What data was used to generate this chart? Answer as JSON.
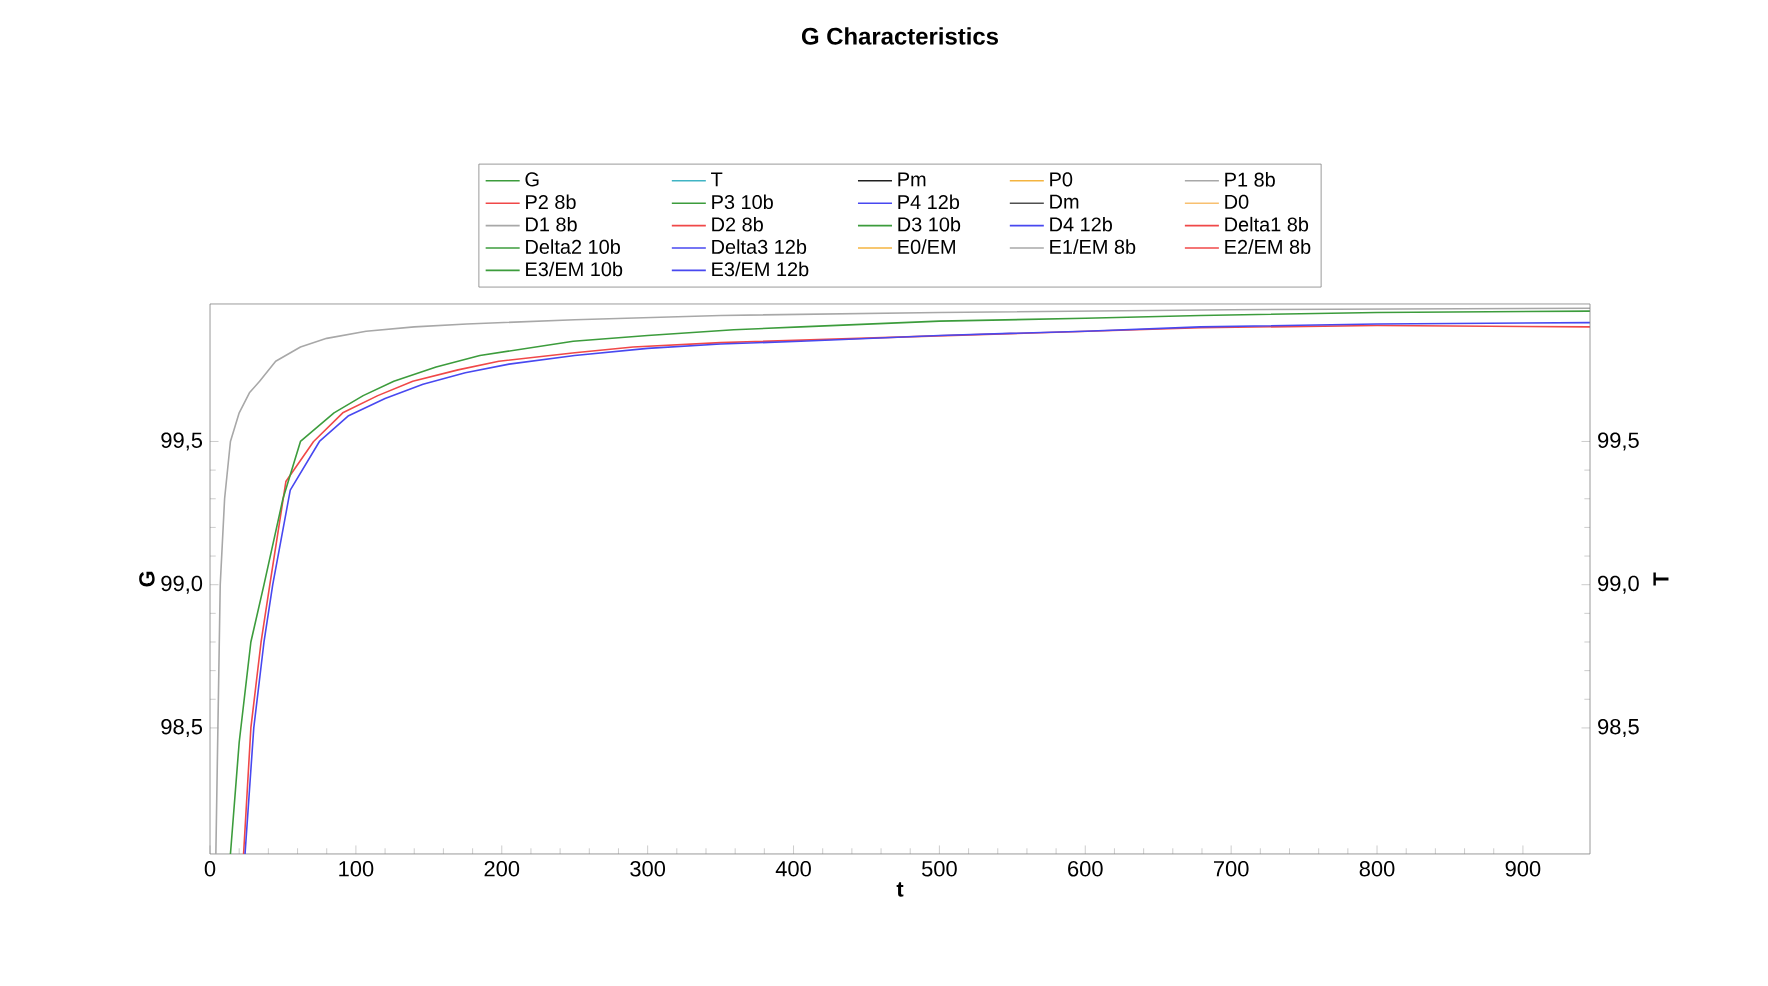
{
  "chart_data": {
    "type": "line",
    "title": "G Characteristics",
    "xlabel": "t",
    "ylabel": "G",
    "y2label": "T",
    "xlim": [
      0,
      946
    ],
    "xticks": [
      0,
      100,
      200,
      300,
      400,
      500,
      600,
      700,
      800,
      900
    ],
    "ylim": [
      98.06,
      99.98
    ],
    "yticks": [
      {
        "value": 98.5,
        "label": "98,5"
      },
      {
        "value": 99.0,
        "label": "99,0"
      },
      {
        "value": 99.5,
        "label": "99,5"
      }
    ],
    "y2lim": [
      98.06,
      99.98
    ],
    "y2ticks": [
      {
        "value": 98.5,
        "label": "98,5"
      },
      {
        "value": 99.0,
        "label": "99,0"
      },
      {
        "value": 99.5,
        "label": "99,5"
      }
    ],
    "grid": false,
    "legend": "top",
    "marker": "none",
    "line_style": "solid",
    "series": [
      {
        "name": "G",
        "color": "#3c9c3c"
      },
      {
        "name": "T",
        "color": "#40b4c4"
      },
      {
        "name": "Pm",
        "color": "#202020"
      },
      {
        "name": "P0",
        "color": "#f4b440"
      },
      {
        "name": "P1 8b",
        "color": "#a8a8a8"
      },
      {
        "name": "P2 8b",
        "color": "#f04848"
      },
      {
        "name": "P3 10b",
        "color": "#3c9c3c"
      },
      {
        "name": "P4 12b",
        "color": "#4848f0"
      },
      {
        "name": "Dm",
        "color": "#505050"
      },
      {
        "name": "D0",
        "color": "#f8c070"
      },
      {
        "name": "D1 8b",
        "color": "#a8a8a8"
      },
      {
        "name": "D2 8b",
        "color": "#f04848"
      },
      {
        "name": "D3 10b",
        "color": "#3c9c3c"
      },
      {
        "name": "D4 12b",
        "color": "#4848f0"
      },
      {
        "name": "Delta1 8b",
        "color": "#f04848"
      },
      {
        "name": "Delta2 10b",
        "color": "#3c9c3c"
      },
      {
        "name": "Delta3 12b",
        "color": "#4848f0"
      },
      {
        "name": "E0/EM",
        "color": "#f4b440"
      },
      {
        "name": "E1/EM 8b",
        "color": "#a8a8a8",
        "x": [
          4,
          7,
          10,
          14,
          20,
          27,
          34,
          45,
          62,
          80,
          107,
          140,
          176,
          250,
          350,
          500,
          700,
          946
        ],
        "values": [
          98.06,
          99.0,
          99.3,
          99.5,
          99.6,
          99.67,
          99.71,
          99.78,
          99.83,
          99.86,
          99.885,
          99.9,
          99.91,
          99.925,
          99.94,
          99.95,
          99.96,
          99.965
        ]
      },
      {
        "name": "E2/EM 8b",
        "color": "#f04848",
        "x": [
          23,
          28,
          35,
          41,
          52,
          71,
          91,
          115,
          139,
          170,
          198,
          250,
          290,
          350,
          679,
          800,
          946
        ],
        "values": [
          98.06,
          98.5,
          98.8,
          99.0,
          99.36,
          99.5,
          99.6,
          99.66,
          99.71,
          99.75,
          99.78,
          99.81,
          99.83,
          99.845,
          99.897,
          99.905,
          99.9
        ]
      },
      {
        "name": "E3/EM 10b",
        "color": "#3c9c3c",
        "x": [
          14,
          20,
          28,
          37,
          50,
          62,
          85,
          105,
          126,
          155,
          185,
          249,
          300,
          359,
          405,
          500,
          600,
          679,
          800,
          946
        ],
        "values": [
          98.06,
          98.45,
          98.8,
          99.0,
          99.3,
          99.5,
          99.6,
          99.66,
          99.71,
          99.76,
          99.8,
          99.85,
          99.87,
          99.89,
          99.9,
          99.92,
          99.93,
          99.94,
          99.95,
          99.955
        ]
      },
      {
        "name": "E3/EM 12b",
        "color": "#4848f0",
        "x": [
          24,
          30,
          37,
          43,
          55,
          75,
          95,
          120,
          146,
          175,
          205,
          250,
          300,
          350,
          405,
          500,
          600,
          679,
          800,
          946
        ],
        "values": [
          98.06,
          98.5,
          98.8,
          99.0,
          99.33,
          99.5,
          99.59,
          99.65,
          99.7,
          99.74,
          99.77,
          99.8,
          99.825,
          99.84,
          99.85,
          99.87,
          99.885,
          99.9,
          99.91,
          99.915
        ]
      }
    ]
  }
}
